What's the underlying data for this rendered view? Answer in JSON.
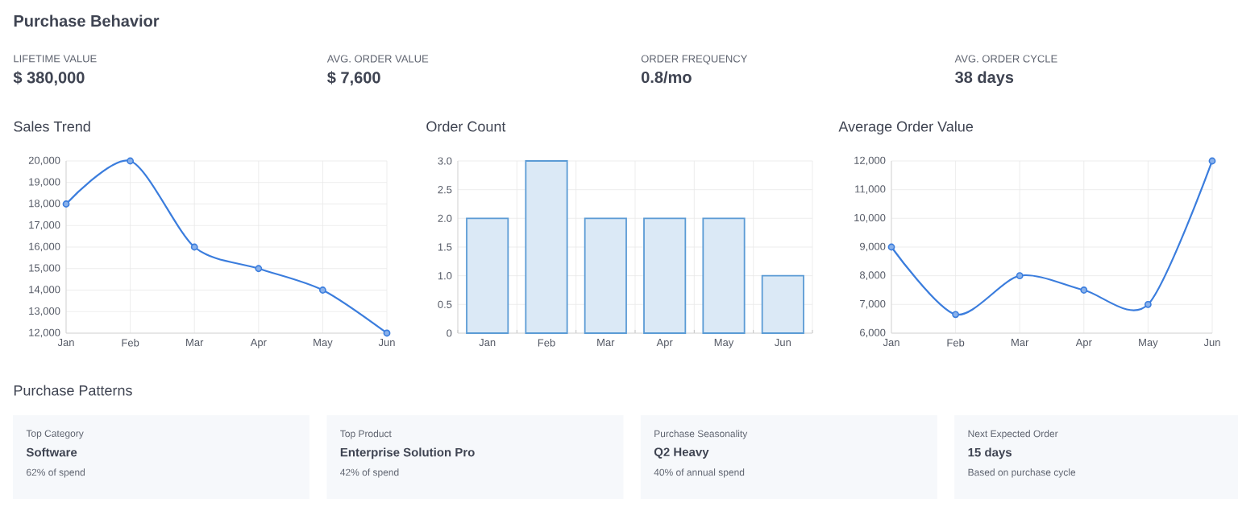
{
  "chart_data": [
    {
      "type": "other",
      "title": "Purchase Behavior",
      "annotations": [
        "LIFETIME VALUE",
        "$ 380,000",
        "AVG. ORDER VALUE",
        "$ 7,600",
        "ORDER FREQUENCY",
        "0.8/mo",
        "AVG. ORDER CYCLE",
        "38 days"
      ]
    },
    {
      "type": "line",
      "title": "Sales Trend",
      "categories": [
        "Jan",
        "Feb",
        "Mar",
        "Apr",
        "May",
        "Jun"
      ],
      "values": [
        18000,
        20000,
        16000,
        15000,
        14000,
        12000
      ],
      "color": "#3b7ddd",
      "marker": "circle",
      "grid": true,
      "ylim": [
        12000,
        20000
      ],
      "yticks": [
        {
          "value": 12000,
          "label": "12,000"
        },
        {
          "value": 13000,
          "label": "13,000"
        },
        {
          "value": 14000,
          "label": "14,000"
        },
        {
          "value": 15000,
          "label": "15,000"
        },
        {
          "value": 16000,
          "label": "16,000"
        },
        {
          "value": 17000,
          "label": "17,000"
        },
        {
          "value": 18000,
          "label": "18,000"
        },
        {
          "value": 19000,
          "label": "19,000"
        },
        {
          "value": 20000,
          "label": "20,000"
        }
      ]
    },
    {
      "type": "bar",
      "title": "Order Count",
      "categories": [
        "Jan",
        "Feb",
        "Mar",
        "Apr",
        "May",
        "Jun"
      ],
      "values": [
        2,
        3,
        2,
        2,
        2,
        1
      ],
      "color": "#5b9bd5",
      "grid": true,
      "ylim": [
        0,
        3
      ],
      "yticks": [
        0,
        0.5,
        {
          "value": 1,
          "label": "1.0"
        },
        1.5,
        {
          "value": 2,
          "label": "2.0"
        },
        2.5,
        {
          "value": 3,
          "label": "3.0"
        }
      ]
    },
    {
      "type": "line",
      "title": "Average Order Value",
      "categories": [
        "Jan",
        "Feb",
        "Mar",
        "Apr",
        "May",
        "Jun"
      ],
      "values": [
        9000,
        6650,
        8000,
        7500,
        7000,
        12000
      ],
      "color": "#3b7ddd",
      "marker": "circle",
      "grid": true,
      "ylim": [
        6000,
        12000
      ],
      "yticks": [
        {
          "value": 6000,
          "label": "6,000"
        },
        {
          "value": 7000,
          "label": "7,000"
        },
        {
          "value": 8000,
          "label": "8,000"
        },
        {
          "value": 9000,
          "label": "9,000"
        },
        {
          "value": 10000,
          "label": "10,000"
        },
        {
          "value": 11000,
          "label": "11,000"
        },
        {
          "value": 12000,
          "label": "12,000"
        }
      ]
    },
    {
      "type": "other",
      "title": "Purchase Patterns",
      "annotations": [
        "Top Category",
        "Software",
        "62% of spend",
        "Top Product",
        "Enterprise Solution Pro",
        "42% of spend",
        "Purchase Seasonality",
        "Q2 Heavy",
        "40% of annual spend",
        "Next Expected Order",
        "15 days",
        "Based on purchase cycle"
      ]
    }
  ]
}
